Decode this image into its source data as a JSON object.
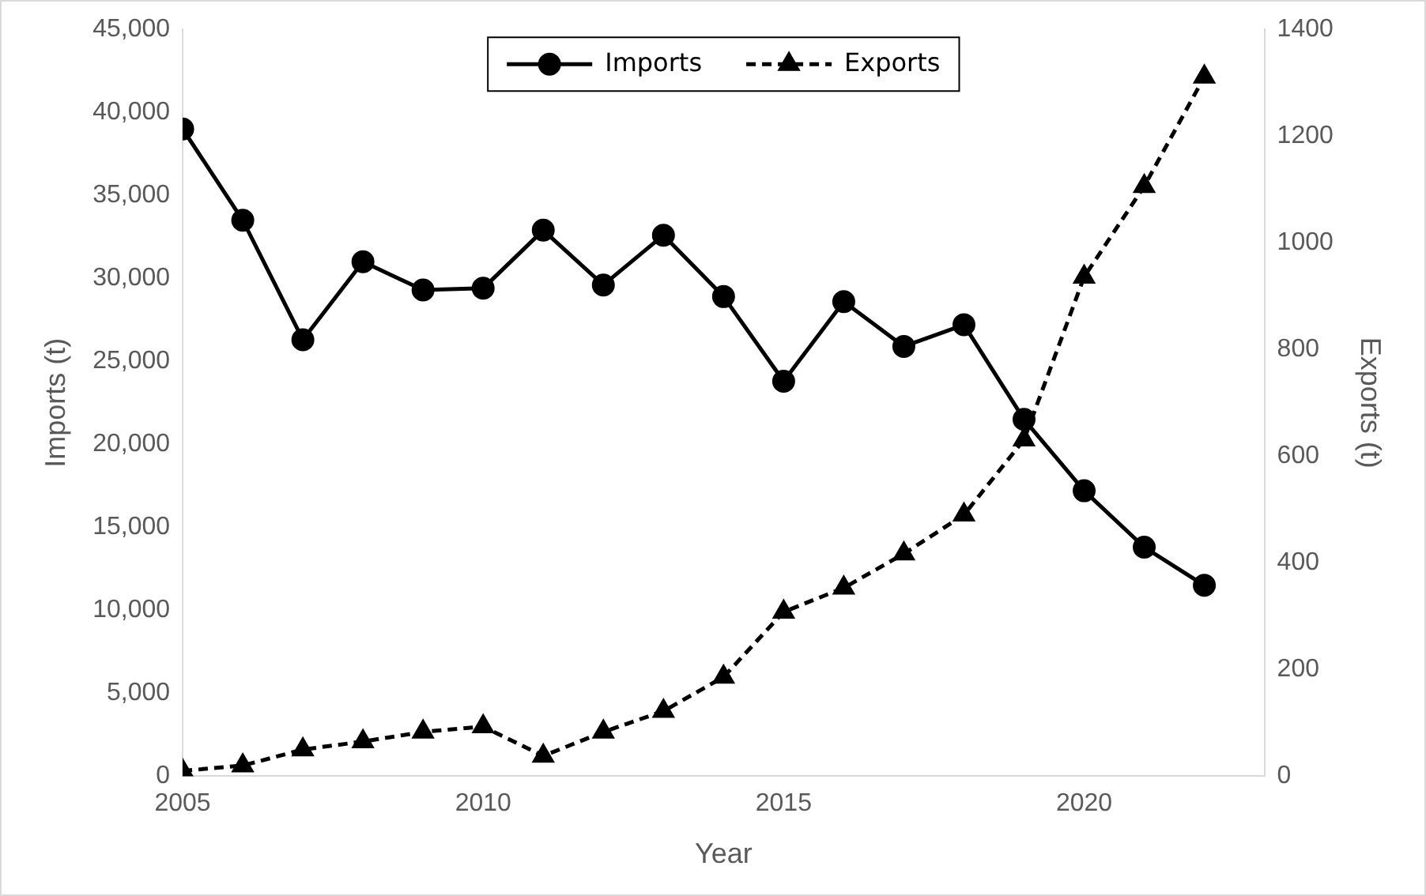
{
  "chart_data": {
    "type": "line",
    "xlabel": "Year",
    "ylabel": "Imports (t)",
    "y2label": "Exports (t)",
    "x": [
      2005,
      2006,
      2007,
      2008,
      2009,
      2010,
      2011,
      2012,
      2013,
      2014,
      2015,
      2016,
      2017,
      2018,
      2019,
      2020,
      2021,
      2022
    ],
    "xlim": [
      2005,
      2023
    ],
    "xticks": [
      2005,
      2010,
      2015,
      2020
    ],
    "ylim": [
      0,
      45000
    ],
    "yticks": [
      0,
      {
        "value": 5000,
        "label": "5,000"
      },
      {
        "value": 10000,
        "label": "10,000"
      },
      {
        "value": 15000,
        "label": "15,000"
      },
      {
        "value": 20000,
        "label": "20,000"
      },
      {
        "value": 25000,
        "label": "25,000"
      },
      {
        "value": 30000,
        "label": "30,000"
      },
      {
        "value": 35000,
        "label": "35,000"
      },
      {
        "value": 40000,
        "label": "40,000"
      },
      {
        "value": 45000,
        "label": "45,000"
      }
    ],
    "y2lim": [
      0,
      1400
    ],
    "y2ticks": [
      0,
      200,
      400,
      600,
      800,
      1000,
      1200,
      1400
    ],
    "grid": false,
    "legend": "top",
    "series": [
      {
        "name": "Imports",
        "color": "#000000",
        "marker": "circle",
        "line_style": "solid",
        "values": [
          39000,
          33500,
          26300,
          31000,
          29300,
          29400,
          32900,
          29600,
          32600,
          28900,
          23800,
          28600,
          25900,
          27200,
          21500,
          17200,
          13800,
          11500
        ]
      },
      {
        "name": "Exports",
        "color": "#000000",
        "marker": "triangle",
        "line_style": "dashed",
        "axis": "y2",
        "values": [
          10,
          20,
          50,
          65,
          83,
          93,
          38,
          83,
          122,
          186,
          308,
          353,
          417,
          490,
          631,
          936,
          1106,
          1311
        ]
      }
    ]
  }
}
